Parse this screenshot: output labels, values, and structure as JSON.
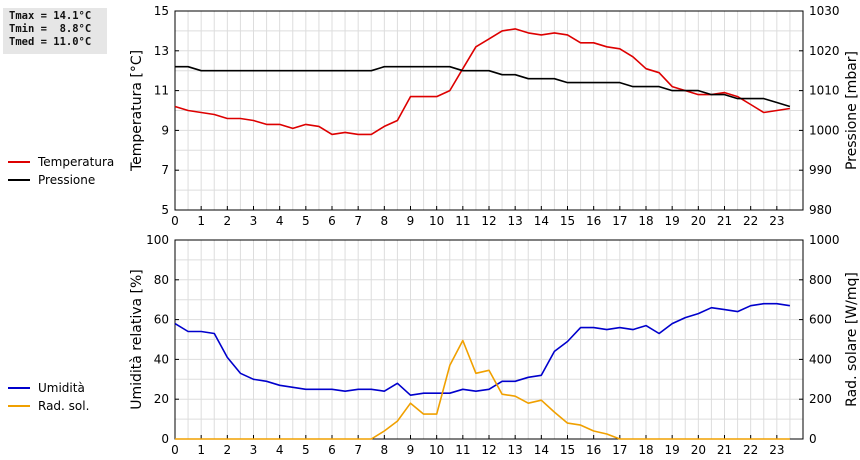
{
  "stats": {
    "lines": [
      "Tmax = 14.1°C",
      "Tmin =  8.8°C",
      "Tmed = 11.0°C"
    ]
  },
  "chart_data": [
    {
      "type": "line",
      "xlim": [
        0,
        24
      ],
      "x_ticks": [
        0,
        1,
        2,
        3,
        4,
        5,
        6,
        7,
        8,
        9,
        10,
        11,
        12,
        13,
        14,
        15,
        16,
        17,
        18,
        19,
        20,
        21,
        22,
        23
      ],
      "ylabel": "Temperatura [°C]",
      "ylim": [
        5,
        15
      ],
      "y_ticks": [
        5,
        7,
        9,
        11,
        13,
        15
      ],
      "y2label": "Pressione [mbar]",
      "y2lim": [
        980,
        1030
      ],
      "y2_ticks": [
        980,
        990,
        1000,
        1010,
        1020,
        1030
      ],
      "grid": true,
      "legend_position": "left",
      "series": [
        {
          "name": "Temperatura",
          "axis": "left",
          "color": "#dd0000",
          "x": [
            0,
            0.5,
            1,
            1.5,
            2,
            2.5,
            3,
            3.5,
            4,
            4.5,
            5,
            5.5,
            6,
            6.5,
            7,
            7.5,
            8,
            8.5,
            9,
            9.5,
            10,
            10.5,
            11,
            11.5,
            12,
            12.5,
            13,
            13.5,
            14,
            14.5,
            15,
            15.5,
            16,
            16.5,
            17,
            17.5,
            18,
            18.5,
            19,
            19.5,
            20,
            20.5,
            21,
            21.5,
            22,
            22.5,
            23,
            23.5
          ],
          "y": [
            10.2,
            10.0,
            9.9,
            9.8,
            9.6,
            9.6,
            9.5,
            9.3,
            9.3,
            9.1,
            9.3,
            9.2,
            8.8,
            8.9,
            8.8,
            8.8,
            9.2,
            9.5,
            10.7,
            10.7,
            10.7,
            11.0,
            12.1,
            13.2,
            13.6,
            14.0,
            14.1,
            13.9,
            13.8,
            13.9,
            13.8,
            13.4,
            13.4,
            13.2,
            13.1,
            12.7,
            12.1,
            11.9,
            11.2,
            11.0,
            10.8,
            10.8,
            10.9,
            10.7,
            10.3,
            9.9,
            10.0,
            10.1
          ]
        },
        {
          "name": "Pressione",
          "axis": "right",
          "color": "#000000",
          "x": [
            0,
            0.5,
            1,
            1.5,
            2,
            2.5,
            3,
            3.5,
            4,
            4.5,
            5,
            5.5,
            6,
            6.5,
            7,
            7.5,
            8,
            8.5,
            9,
            9.5,
            10,
            10.5,
            11,
            11.5,
            12,
            12.5,
            13,
            13.5,
            14,
            14.5,
            15,
            15.5,
            16,
            16.5,
            17,
            17.5,
            18,
            18.5,
            19,
            19.5,
            20,
            20.5,
            21,
            21.5,
            22,
            22.5,
            23,
            23.5
          ],
          "y": [
            1016,
            1016,
            1015,
            1015,
            1015,
            1015,
            1015,
            1015,
            1015,
            1015,
            1015,
            1015,
            1015,
            1015,
            1015,
            1015,
            1016,
            1016,
            1016,
            1016,
            1016,
            1016,
            1015,
            1015,
            1015,
            1014,
            1014,
            1013,
            1013,
            1013,
            1012,
            1012,
            1012,
            1012,
            1012,
            1011,
            1011,
            1011,
            1010,
            1010,
            1010,
            1009,
            1009,
            1008,
            1008,
            1008,
            1007,
            1006
          ]
        }
      ]
    },
    {
      "type": "line",
      "xlim": [
        0,
        24
      ],
      "x_ticks": [
        0,
        1,
        2,
        3,
        4,
        5,
        6,
        7,
        8,
        9,
        10,
        11,
        12,
        13,
        14,
        15,
        16,
        17,
        18,
        19,
        20,
        21,
        22,
        23
      ],
      "ylabel": "Umidità relativa [%]",
      "ylim": [
        0,
        100
      ],
      "y_ticks": [
        0,
        20,
        40,
        60,
        80,
        100
      ],
      "y2label": "Rad. solare [W/mq]",
      "y2lim": [
        0,
        1000
      ],
      "y2_ticks": [
        0,
        200,
        400,
        600,
        800,
        1000
      ],
      "grid": true,
      "legend_position": "left",
      "series": [
        {
          "name": "Umidità",
          "axis": "left",
          "color": "#0000cc",
          "x": [
            0,
            0.5,
            1,
            1.5,
            2,
            2.5,
            3,
            3.5,
            4,
            4.5,
            5,
            5.5,
            6,
            6.5,
            7,
            7.5,
            8,
            8.5,
            9,
            9.5,
            10,
            10.5,
            11,
            11.5,
            12,
            12.5,
            13,
            13.5,
            14,
            14.5,
            15,
            15.5,
            16,
            16.5,
            17,
            17.5,
            18,
            18.5,
            19,
            19.5,
            20,
            20.5,
            21,
            21.5,
            22,
            22.5,
            23,
            23.5
          ],
          "y": [
            58,
            54,
            54,
            53,
            41,
            33,
            30,
            29,
            27,
            26,
            25,
            25,
            25,
            24,
            25,
            25,
            24,
            28,
            22,
            23,
            23,
            23,
            25,
            24,
            25,
            29,
            29,
            31,
            32,
            44,
            49,
            56,
            56,
            55,
            56,
            55,
            57,
            53,
            58,
            61,
            63,
            66,
            65,
            64,
            67,
            68,
            68,
            67
          ]
        },
        {
          "name": "Rad. sol.",
          "axis": "right",
          "color": "#f0a000",
          "x": [
            0,
            0.5,
            1,
            1.5,
            2,
            2.5,
            3,
            3.5,
            4,
            4.5,
            5,
            5.5,
            6,
            6.5,
            7,
            7.5,
            8,
            8.5,
            9,
            9.5,
            10,
            10.5,
            11,
            11.5,
            12,
            12.5,
            13,
            13.5,
            14,
            14.5,
            15,
            15.5,
            16,
            16.5,
            17,
            17.5,
            18,
            18.5,
            19,
            19.5,
            20,
            20.5,
            21,
            21.5,
            22,
            22.5,
            23,
            23.5
          ],
          "y": [
            0,
            0,
            0,
            0,
            0,
            0,
            0,
            0,
            0,
            0,
            0,
            0,
            0,
            0,
            0,
            0,
            40,
            90,
            180,
            125,
            125,
            370,
            495,
            330,
            345,
            225,
            215,
            180,
            195,
            135,
            80,
            70,
            40,
            25,
            0,
            0,
            0,
            0,
            0,
            0,
            0,
            0,
            0,
            0,
            0,
            0,
            0,
            0
          ]
        }
      ]
    }
  ]
}
